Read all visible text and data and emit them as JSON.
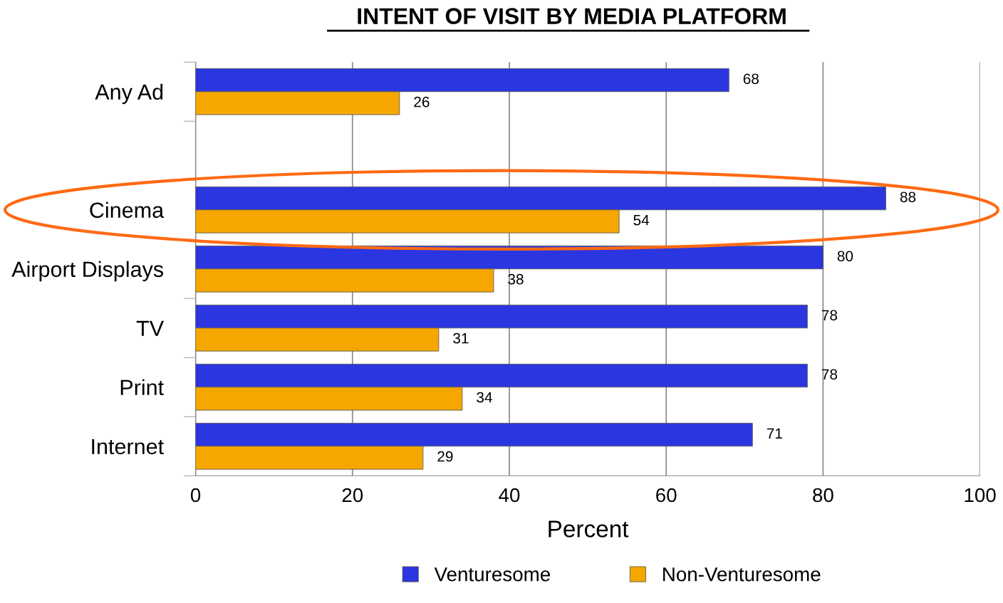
{
  "chart_data": {
    "type": "bar",
    "orientation": "horizontal",
    "title": "INTENT OF VISIT BY MEDIA PLATFORM",
    "xlabel": "Percent",
    "categories": [
      "Any Ad",
      null,
      "Cinema",
      "Airport Displays",
      "TV",
      "Print",
      "Internet"
    ],
    "series": [
      {
        "name": "Venturesome",
        "color": "#2b36e0",
        "values": [
          68,
          null,
          88,
          80,
          78,
          78,
          71
        ]
      },
      {
        "name": "Non-Venturesome",
        "color": "#f5a700",
        "values": [
          26,
          null,
          54,
          38,
          31,
          34,
          29
        ]
      }
    ],
    "xlim": [
      0,
      100
    ],
    "xticks": [
      0,
      20,
      40,
      60,
      80,
      100
    ],
    "grid": "x",
    "legend": "bottom",
    "data_labels": true
  }
}
